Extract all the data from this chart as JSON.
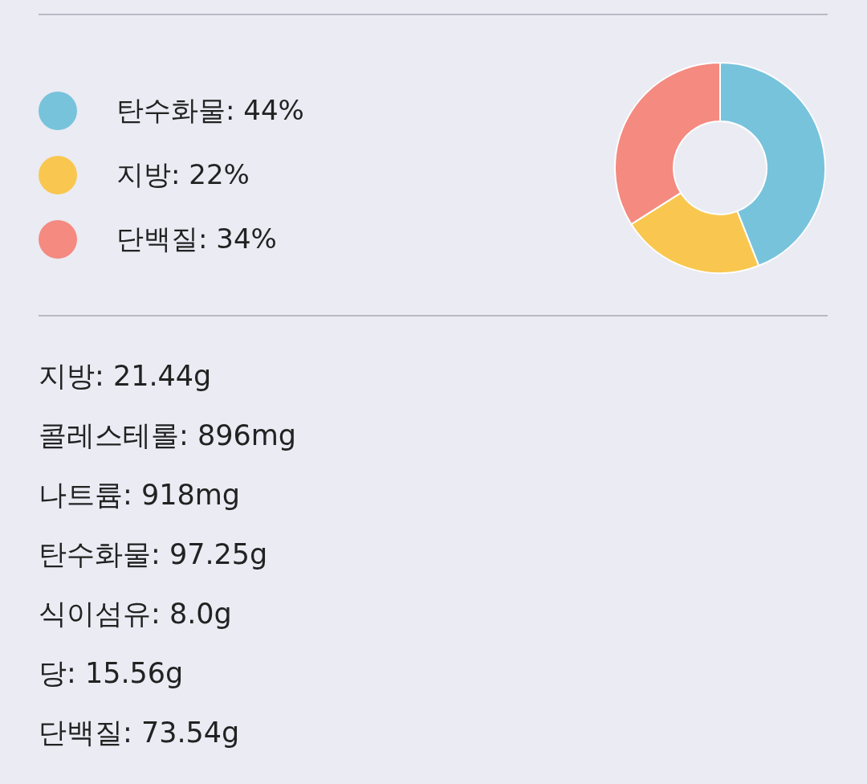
{
  "chart_data": {
    "type": "donut",
    "categories": [
      "탄수화물: 44%",
      "지방: 22%",
      "단백질: 34%"
    ],
    "values": [
      44,
      22,
      34
    ],
    "colors": [
      "#78c3dc",
      "#f9c74f",
      "#f48a80"
    ],
    "legend": "left",
    "annotations": [
      "지방: 21.44g",
      "콜레스테롤: 896mg",
      "나트륨: 918mg",
      "탄수화물: 97.25g",
      "식이섬유: 8.0g",
      "당: 15.56g",
      "단백질: 73.54g"
    ]
  }
}
